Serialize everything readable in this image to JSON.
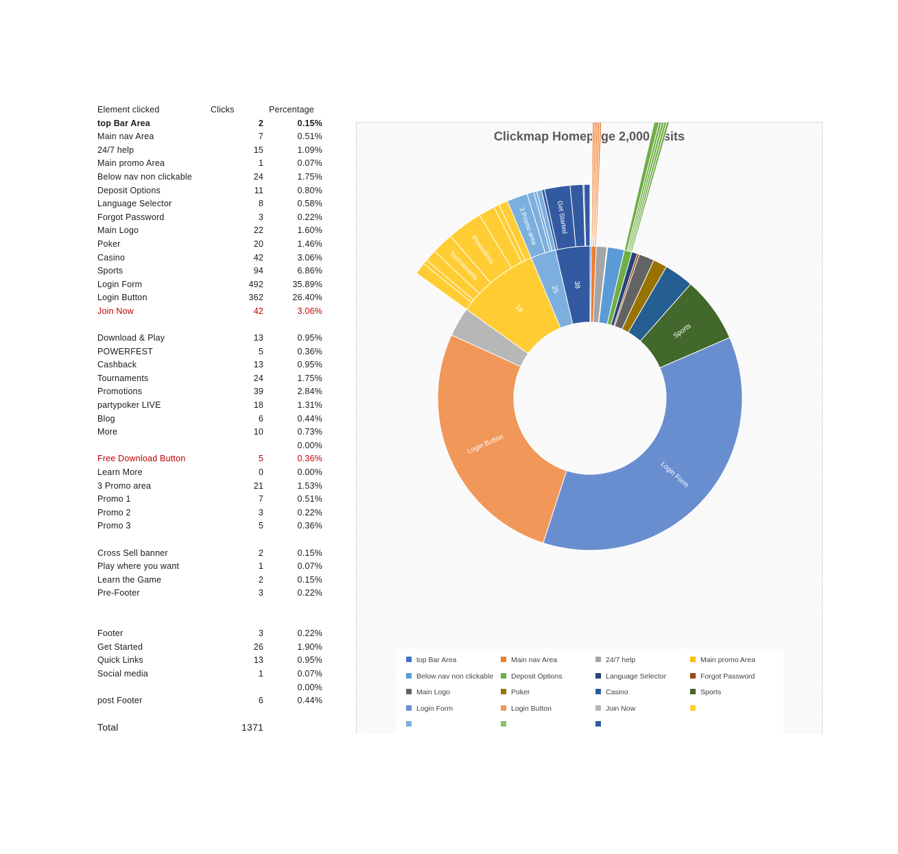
{
  "table": {
    "headers": {
      "element": "Element clicked",
      "clicks": "Clicks",
      "percentage": "Percentage"
    },
    "rows": [
      {
        "name": "top Bar Area",
        "clicks": "2",
        "pct": "0.15%",
        "style": "bold"
      },
      {
        "name": "Main nav Area",
        "clicks": "7",
        "pct": "0.51%"
      },
      {
        "name": "24/7 help",
        "clicks": "15",
        "pct": "1.09%"
      },
      {
        "name": "Main promo Area",
        "clicks": "1",
        "pct": "0.07%"
      },
      {
        "name": "Below nav non clickable",
        "clicks": "24",
        "pct": "1.75%"
      },
      {
        "name": "Deposit Options",
        "clicks": "11",
        "pct": "0.80%"
      },
      {
        "name": "Language Selector",
        "clicks": "8",
        "pct": "0.58%"
      },
      {
        "name": "Forgot Password",
        "clicks": "3",
        "pct": "0.22%"
      },
      {
        "name": "Main Logo",
        "clicks": "22",
        "pct": "1.60%"
      },
      {
        "name": "Poker",
        "clicks": "20",
        "pct": "1.46%"
      },
      {
        "name": "Casino",
        "clicks": "42",
        "pct": "3.06%"
      },
      {
        "name": "Sports",
        "clicks": "94",
        "pct": "6.86%"
      },
      {
        "name": "Login Form",
        "clicks": "492",
        "pct": "35.89%"
      },
      {
        "name": "Login Button",
        "clicks": "362",
        "pct": "26.40%"
      },
      {
        "name": "Join Now",
        "clicks": "42",
        "pct": "3.06%",
        "style": "red"
      },
      {
        "name": "",
        "clicks": "",
        "pct": ""
      },
      {
        "name": "Download & Play",
        "clicks": "13",
        "pct": "0.95%"
      },
      {
        "name": "POWERFEST",
        "clicks": "5",
        "pct": "0.36%"
      },
      {
        "name": "Cashback",
        "clicks": "13",
        "pct": "0.95%"
      },
      {
        "name": "Tournaments",
        "clicks": "24",
        "pct": "1.75%"
      },
      {
        "name": "Promotions",
        "clicks": "39",
        "pct": "2.84%"
      },
      {
        "name": "partypoker LIVE",
        "clicks": "18",
        "pct": "1.31%"
      },
      {
        "name": "Blog",
        "clicks": "6",
        "pct": "0.44%"
      },
      {
        "name": "More",
        "clicks": "10",
        "pct": "0.73%"
      },
      {
        "name": "",
        "clicks": "",
        "pct": "0.00%"
      },
      {
        "name": "Free Download Button",
        "clicks": "5",
        "pct": "0.36%",
        "style": "red"
      },
      {
        "name": "Learn More",
        "clicks": "0",
        "pct": "0.00%"
      },
      {
        "name": "3 Promo area",
        "clicks": "21",
        "pct": "1.53%"
      },
      {
        "name": "Promo 1",
        "clicks": "7",
        "pct": "0.51%"
      },
      {
        "name": "Promo 2",
        "clicks": "3",
        "pct": "0.22%"
      },
      {
        "name": "Promo 3",
        "clicks": "5",
        "pct": "0.36%"
      },
      {
        "name": "",
        "clicks": "",
        "pct": ""
      },
      {
        "name": "Cross Sell banner",
        "clicks": "2",
        "pct": "0.15%"
      },
      {
        "name": "Play where you want",
        "clicks": "1",
        "pct": "0.07%"
      },
      {
        "name": "Learn the Game",
        "clicks": "2",
        "pct": "0.15%"
      },
      {
        "name": "Pre-Footer",
        "clicks": "3",
        "pct": "0.22%"
      },
      {
        "name": "",
        "clicks": "",
        "pct": ""
      },
      {
        "name": "",
        "clicks": "",
        "pct": ""
      },
      {
        "name": "Footer",
        "clicks": "3",
        "pct": "0.22%"
      },
      {
        "name": "Get Started",
        "clicks": "26",
        "pct": "1.90%"
      },
      {
        "name": "Quick Links",
        "clicks": "13",
        "pct": "0.95%"
      },
      {
        "name": "Social media",
        "clicks": "1",
        "pct": "0.07%"
      },
      {
        "name": "",
        "clicks": "",
        "pct": "0.00%"
      },
      {
        "name": "post Footer",
        "clicks": "6",
        "pct": "0.44%"
      },
      {
        "name": "",
        "clicks": "",
        "pct": ""
      },
      {
        "name": "Total",
        "clicks": "1371",
        "pct": "",
        "style": "total"
      }
    ]
  },
  "chart_data": {
    "type": "sunburst",
    "title": "Clickmap Homepage 2,000 visits",
    "rings": [
      {
        "name": "top Bar Area",
        "value": 2,
        "color": "#4472c4"
      },
      {
        "name": "Main nav Area",
        "value": 7,
        "color": "#ed7d31",
        "children": [
          {
            "name": "",
            "value": 1
          },
          {
            "name": "",
            "value": 1
          },
          {
            "name": "",
            "value": 1
          },
          {
            "name": "",
            "value": 1
          },
          {
            "name": "",
            "value": 1
          }
        ]
      },
      {
        "name": "24/7 help",
        "value": 15,
        "color": "#a5a5a5"
      },
      {
        "name": "Main promo Area",
        "value": 1,
        "color": "#ffc000"
      },
      {
        "name": "Below nav non clickable",
        "value": 24,
        "color": "#5b9bd5"
      },
      {
        "name": "Deposit Options",
        "value": 11,
        "color": "#70ad47",
        "children": [
          {
            "name": "",
            "value": 2
          },
          {
            "name": "",
            "value": 1
          },
          {
            "name": "",
            "value": 1
          },
          {
            "name": "",
            "value": 1
          },
          {
            "name": "",
            "value": 1
          }
        ]
      },
      {
        "name": "Language Selector",
        "value": 8,
        "color": "#264478"
      },
      {
        "name": "Forgot Password",
        "value": 3,
        "color": "#9e480e"
      },
      {
        "name": "Main Logo",
        "value": 22,
        "color": "#636363"
      },
      {
        "name": "Poker",
        "value": 20,
        "color": "#997300"
      },
      {
        "name": "Casino",
        "value": 42,
        "color": "#255e91"
      },
      {
        "name": "Sports",
        "value": 94,
        "color": "#43682b"
      },
      {
        "name": "Login Form",
        "value": 492,
        "color": "#698ed0"
      },
      {
        "name": "Login Button",
        "value": 362,
        "color": "#f1975a"
      },
      {
        "name": "Join Now",
        "value": 42,
        "color": "#b7b7b7"
      },
      {
        "name": "",
        "value": 118,
        "label": "16",
        "color": "#ffcd33",
        "children": [
          {
            "name": "Download & Play",
            "value": 13
          },
          {
            "name": "POWERFEST",
            "value": 5
          },
          {
            "name": "Cashback",
            "value": 13
          },
          {
            "name": "Tournaments",
            "value": 24,
            "label": "Tournaments"
          },
          {
            "name": "Promotions",
            "value": 39,
            "label": "Promotions"
          },
          {
            "name": "partypoker LIVE",
            "value": 18
          },
          {
            "name": "Blog",
            "value": 6
          },
          {
            "name": "More",
            "value": 10
          }
        ]
      },
      {
        "name": "",
        "value": 36,
        "label": "25",
        "color": "#7cafdd",
        "children": [
          {
            "name": "Learn More",
            "value": 0
          },
          {
            "name": "3 Promo area",
            "value": 21,
            "label": "3 Promo area"
          },
          {
            "name": "Promo 1",
            "value": 7
          },
          {
            "name": "Promo 2",
            "value": 3
          },
          {
            "name": "Promo 3",
            "value": 5
          }
        ]
      },
      {
        "name": "",
        "value": 49,
        "label": "38",
        "color": "#335aa1",
        "children": [
          {
            "name": "Footer",
            "value": 3
          },
          {
            "name": "Get Started",
            "value": 26,
            "label": "Get Started"
          },
          {
            "name": "Quick Links",
            "value": 13
          },
          {
            "name": "Social media",
            "value": 1
          },
          {
            "name": "post Footer",
            "value": 6
          }
        ]
      }
    ],
    "legend": [
      {
        "label": "top Bar Area",
        "color": "#4472c4"
      },
      {
        "label": "Main nav Area",
        "color": "#ed7d31"
      },
      {
        "label": "24/7 help",
        "color": "#a5a5a5"
      },
      {
        "label": "Main promo Area",
        "color": "#ffc000"
      },
      {
        "label": "Below nav non clickable",
        "color": "#5b9bd5"
      },
      {
        "label": "Deposit Options",
        "color": "#70ad47"
      },
      {
        "label": "Language Selector",
        "color": "#264478"
      },
      {
        "label": "Forgot Password",
        "color": "#9e480e"
      },
      {
        "label": "Main Logo",
        "color": "#636363"
      },
      {
        "label": "Poker",
        "color": "#997300"
      },
      {
        "label": "Casino",
        "color": "#255e91"
      },
      {
        "label": "Sports",
        "color": "#43682b"
      },
      {
        "label": "Login Form",
        "color": "#698ed0"
      },
      {
        "label": "Login Button",
        "color": "#f1975a"
      },
      {
        "label": "Join Now",
        "color": "#b7b7b7"
      },
      {
        "label": "",
        "color": "#ffcd33"
      },
      {
        "label": "",
        "color": "#7cafdd"
      },
      {
        "label": "",
        "color": "#8cc168"
      },
      {
        "label": "",
        "color": "#335aa1"
      }
    ],
    "legend_position": "bottom"
  }
}
